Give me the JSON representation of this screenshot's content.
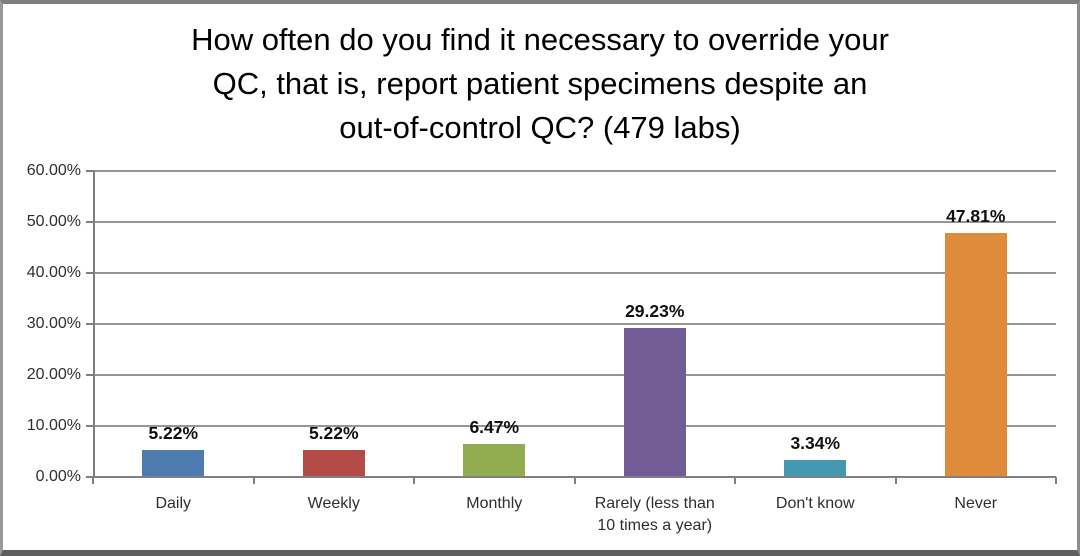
{
  "chart_data": {
    "type": "bar",
    "title": "How often do you find it necessary to override your QC, that is, report patient specimens despite an out-of-control QC? (479 labs)",
    "title_lines": [
      "How often do you find it necessary to override your",
      "QC, that is, report patient specimens despite an",
      "out-of-control QC? (479 labs)"
    ],
    "categories": [
      "Daily",
      "Weekly",
      "Monthly",
      "Rarely (less than 10 times a year)",
      "Don't know",
      "Never"
    ],
    "category_lines": [
      [
        "Daily"
      ],
      [
        "Weekly"
      ],
      [
        "Monthly"
      ],
      [
        "Rarely (less than",
        "10 times a year)"
      ],
      [
        "Don't know"
      ],
      [
        "Never"
      ]
    ],
    "values": [
      5.22,
      5.22,
      6.47,
      29.23,
      3.34,
      47.81
    ],
    "value_labels": [
      "5.22%",
      "5.22%",
      "6.47%",
      "29.23%",
      "3.34%",
      "47.81%"
    ],
    "bar_colors": [
      "#4E7CB0",
      "#B34B47",
      "#92AC50",
      "#715C96",
      "#4399AE",
      "#E08B3C"
    ],
    "xlabel": "",
    "ylabel": "",
    "ylim": [
      0,
      60
    ],
    "y_ticks": [
      {
        "value": 0,
        "label": "0.00%"
      },
      {
        "value": 10,
        "label": "10.00%"
      },
      {
        "value": 20,
        "label": "20.00%"
      },
      {
        "value": 30,
        "label": "30.00%"
      },
      {
        "value": 40,
        "label": "40.00%"
      },
      {
        "value": 50,
        "label": "50.00%"
      },
      {
        "value": 60,
        "label": "60.00%"
      }
    ],
    "grid": true,
    "legend": false
  },
  "style": {
    "grid_color": "#969696",
    "axis_color": "#7f7f7f",
    "tick_label_color": "#2e2e2e",
    "data_label_color": "#111111",
    "title_color": "#000000",
    "background": "#ffffff",
    "frame_border_color": "#8c8c8c"
  }
}
